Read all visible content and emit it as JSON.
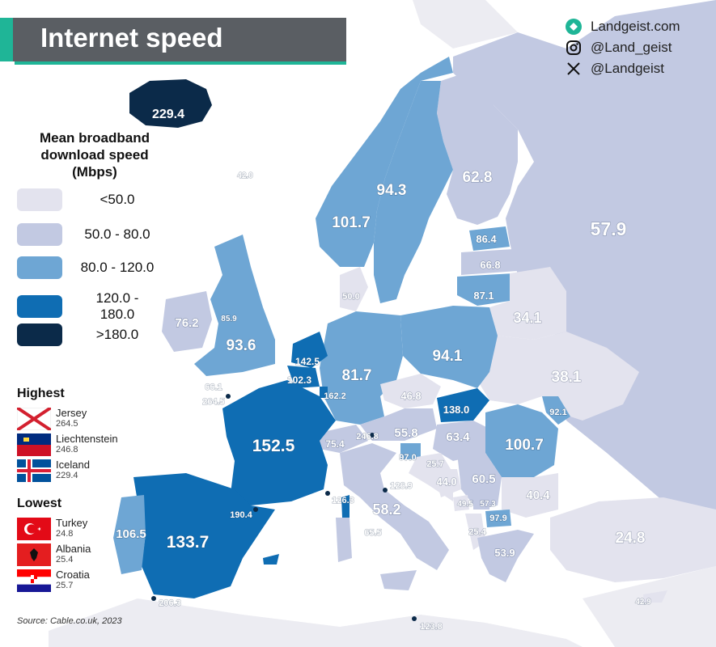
{
  "title": "Internet speed",
  "social": {
    "website": "Landgeist.com",
    "instagram": "@Land_geist",
    "x": "@Landgeist"
  },
  "legend": {
    "title_line1": "Mean broadband",
    "title_line2": "download speed",
    "title_line3": "(Mbps)",
    "items": [
      {
        "label": "<50.0",
        "color": "#e3e3ee"
      },
      {
        "label": "50.0  -  80.0",
        "color": "#c2c9e2"
      },
      {
        "label": "80.0  - 120.0",
        "color": "#6ea6d4"
      },
      {
        "label": "120.0 - 180.0",
        "color": "#0f6db3"
      },
      {
        "label": ">180.0",
        "color": "#0b2a49"
      }
    ]
  },
  "highest": {
    "heading": "Highest",
    "items": [
      {
        "name": "Jersey",
        "value": "264.5",
        "flag": "jersey-flag"
      },
      {
        "name": "Liechtenstein",
        "value": "246.8",
        "flag": "liechtenstein-flag"
      },
      {
        "name": "Iceland",
        "value": "229.4",
        "flag": "iceland-flag"
      }
    ]
  },
  "lowest": {
    "heading": "Lowest",
    "items": [
      {
        "name": "Turkey",
        "value": "24.8",
        "flag": "turkey-flag"
      },
      {
        "name": "Albania",
        "value": "25.4",
        "flag": "albania-flag"
      },
      {
        "name": "Croatia",
        "value": "25.7",
        "flag": "croatia-flag"
      }
    ]
  },
  "source": "Source: Cable.co.uk, 2023",
  "map_labels": {
    "iceland": "229.4",
    "faroe": "42.0",
    "norway": "101.7",
    "sweden": "94.3",
    "finland": "62.8",
    "russia": "57.9",
    "estonia": "86.4",
    "latvia": "66.8",
    "lithuania": "87.1",
    "belarus": "34.1",
    "ukraine": "38.1",
    "moldova": "92.1",
    "denmark": "50.0",
    "ireland": "76.2",
    "isle_of_man": "85.9",
    "uk": "93.6",
    "netherlands": "142.5",
    "belgium": "102.3",
    "luxembourg": "162.2",
    "guernsey": "66.1",
    "jersey": "264.5",
    "germany": "81.7",
    "poland": "94.1",
    "czechia": "46.8",
    "slovakia": "138.0",
    "france": "152.5",
    "switzerland": "75.4",
    "liechtenstein": "246.8",
    "austria": "55.8",
    "hungary": "63.4",
    "romania": "100.7",
    "slovenia": "97.0",
    "croatia": "25.7",
    "bosnia": "44.0",
    "serbia": "60.5",
    "bulgaria": "40.4",
    "montenegro": "49.5",
    "kosovo": "57.3",
    "north_macedonia": "97.9",
    "albania": "25.4",
    "greece": "53.9",
    "turkey": "24.8",
    "cyprus": "42.9",
    "malta": "123.8",
    "italy": "58.2",
    "san_marino": "126.9",
    "monaco": "126.3",
    "vatican": "65.5",
    "andorra": "190.4",
    "spain": "133.7",
    "portugal": "106.5",
    "gibraltar": "206.3"
  }
}
